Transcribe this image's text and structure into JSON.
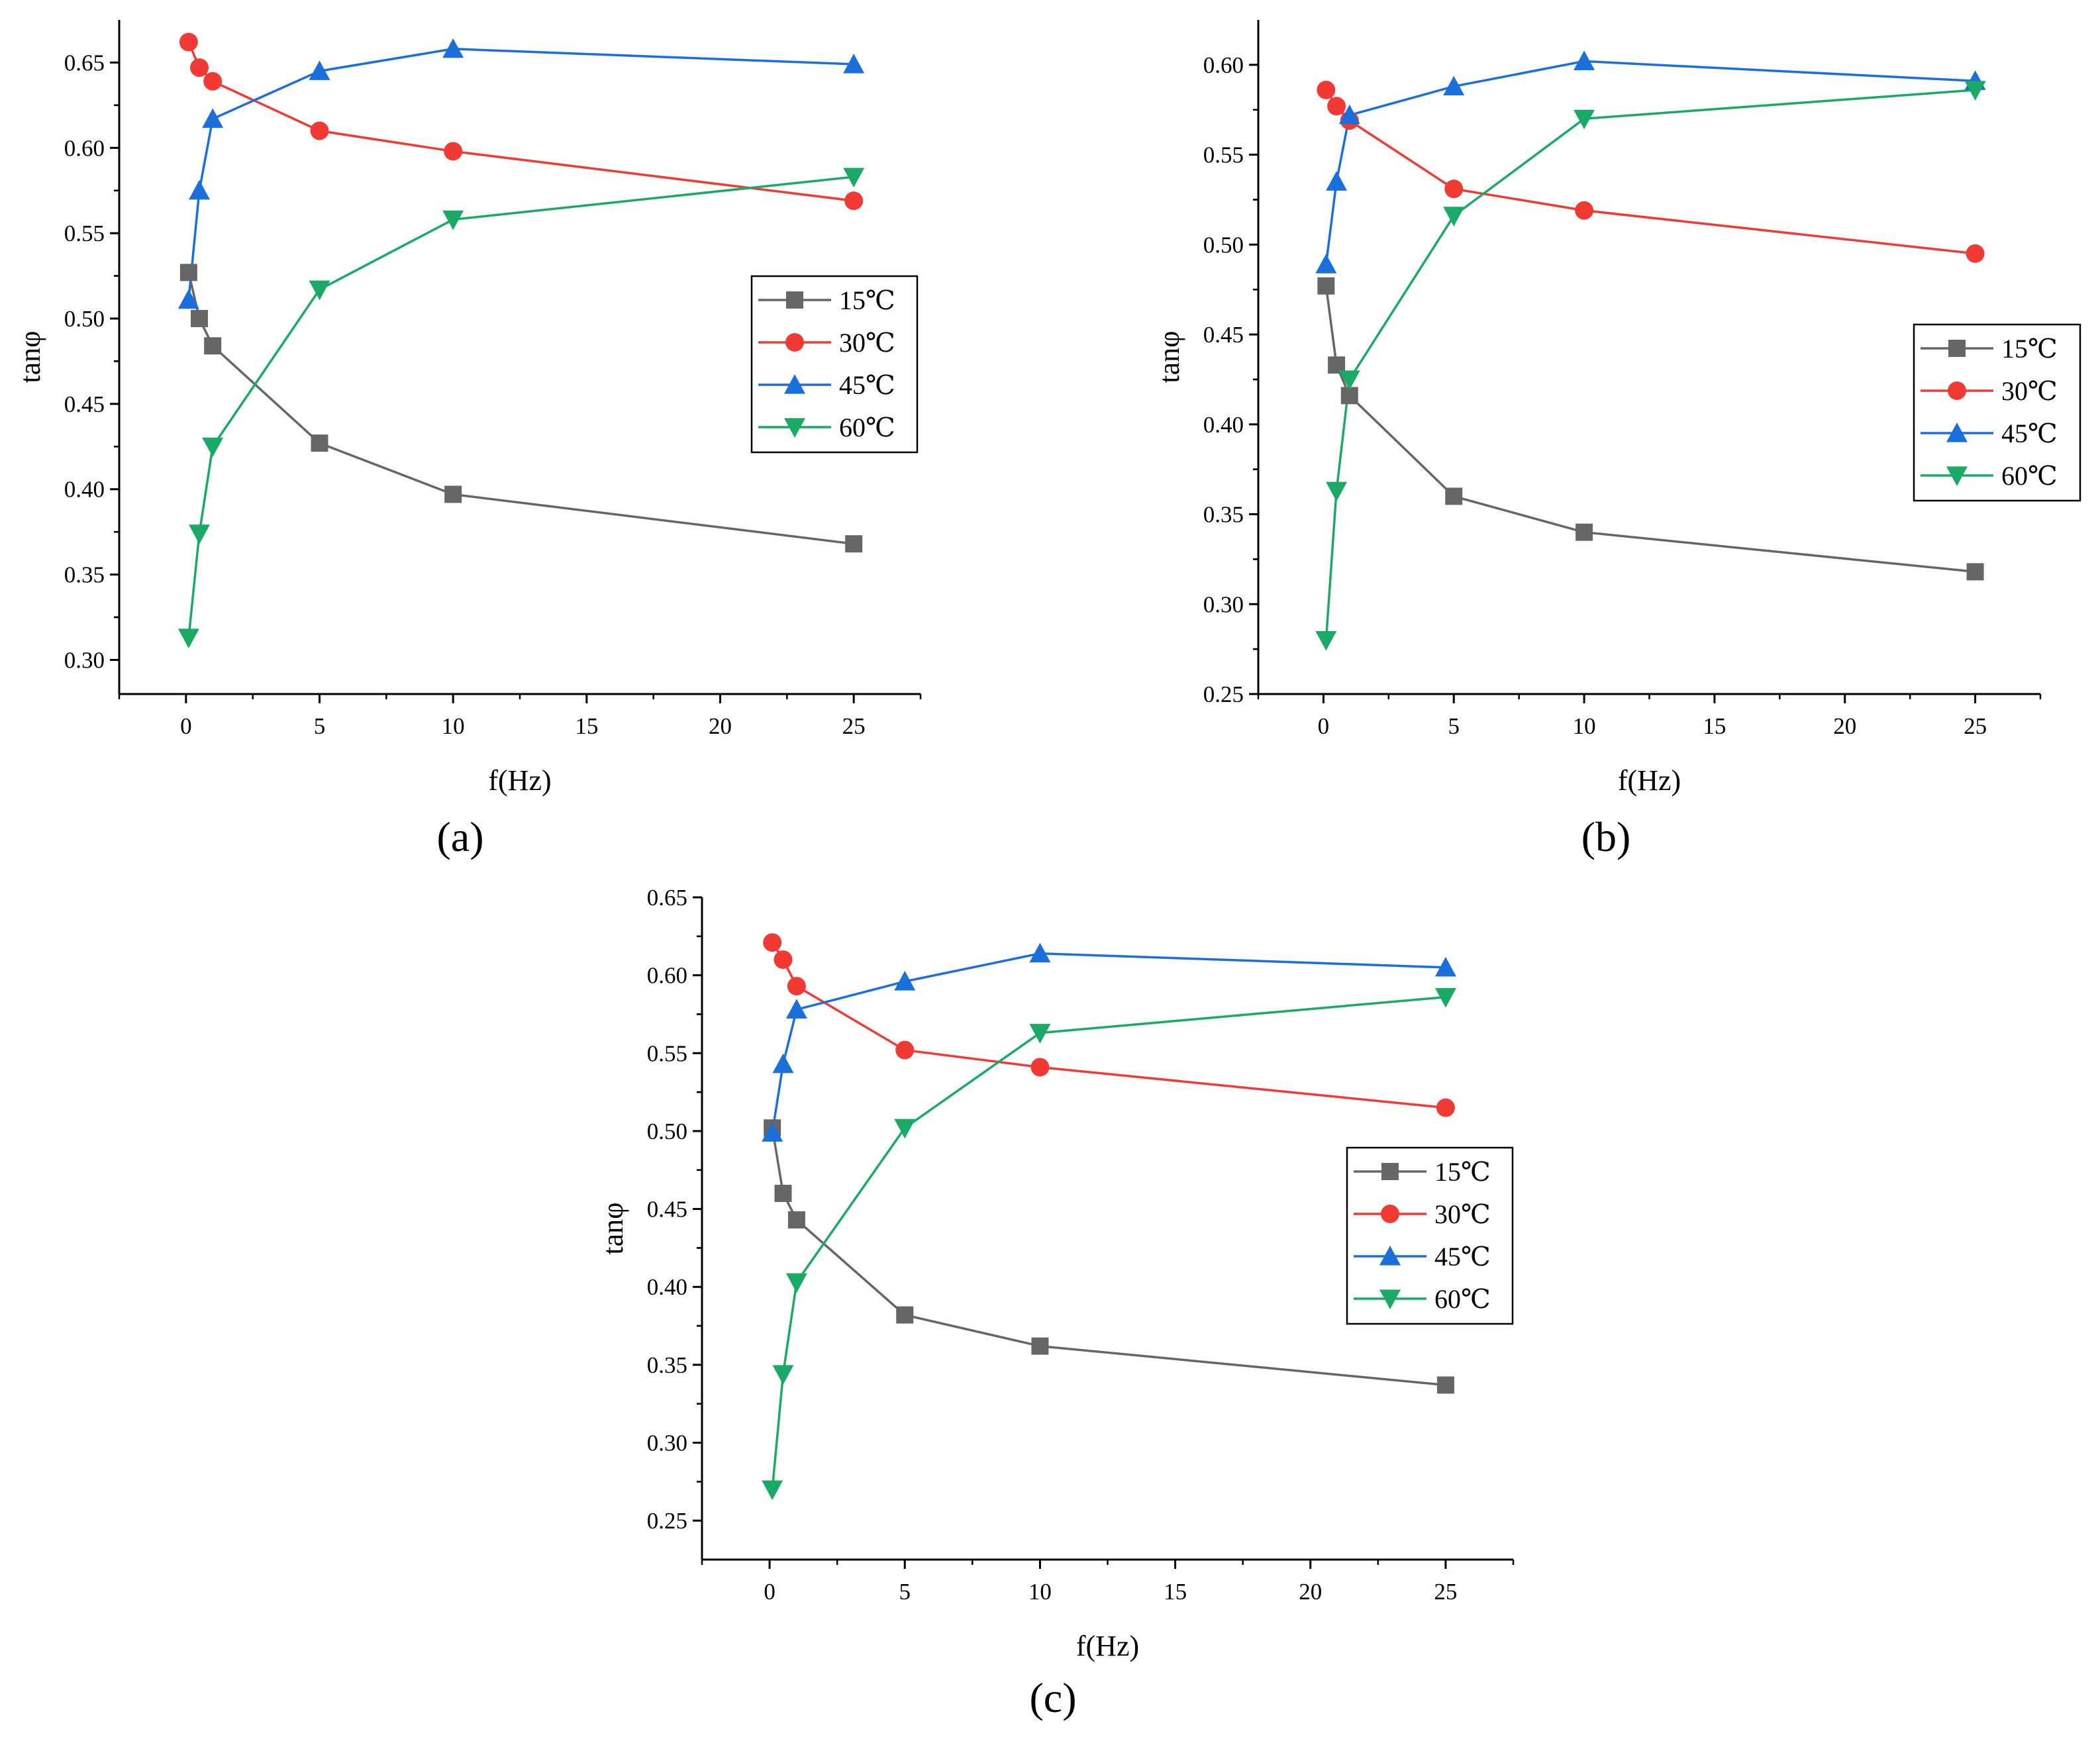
{
  "chart_data": [
    {
      "type": "line",
      "panel_label": "(a)",
      "xlabel": "f(Hz)",
      "ylabel": "tanφ",
      "xlim": [
        -2.5,
        27.5
      ],
      "ylim": [
        0.28,
        0.675
      ],
      "xticks": [
        0,
        5,
        10,
        15,
        20,
        25
      ],
      "yticks": [
        "0.30",
        "0.35",
        "0.40",
        "0.45",
        "0.50",
        "0.55",
        "0.60",
        "0.65"
      ],
      "legend_position": "center-right",
      "x": [
        0.1,
        0.5,
        1,
        5,
        10,
        25
      ],
      "series": [
        {
          "name": "15℃",
          "color": "#666666",
          "marker": "square",
          "values": [
            0.527,
            0.5,
            0.484,
            0.427,
            0.397,
            0.368
          ]
        },
        {
          "name": "30℃",
          "color": "#f23a35",
          "marker": "circle",
          "values": [
            0.662,
            0.647,
            0.639,
            0.61,
            0.598,
            0.569
          ]
        },
        {
          "name": "45℃",
          "color": "#1a6fdb",
          "marker": "triangle-up",
          "values": [
            0.511,
            0.575,
            0.617,
            0.645,
            0.658,
            0.649
          ]
        },
        {
          "name": "60℃",
          "color": "#1aaa66",
          "marker": "triangle-down",
          "values": [
            0.313,
            0.374,
            0.425,
            0.517,
            0.558,
            0.583
          ]
        }
      ]
    },
    {
      "type": "line",
      "panel_label": "(b)",
      "xlabel": "f(Hz)",
      "ylabel": "tanφ",
      "xlim": [
        -2.5,
        27.5
      ],
      "ylim": [
        0.25,
        0.625
      ],
      "xticks": [
        0,
        5,
        10,
        15,
        20,
        25
      ],
      "yticks": [
        "0.25",
        "0.30",
        "0.35",
        "0.40",
        "0.45",
        "0.50",
        "0.55",
        "0.60"
      ],
      "legend_position": "center-right",
      "x": [
        0.1,
        0.5,
        1,
        5,
        10,
        25
      ],
      "series": [
        {
          "name": "15℃",
          "color": "#666666",
          "marker": "square",
          "values": [
            0.477,
            0.433,
            0.416,
            0.36,
            0.34,
            0.318
          ]
        },
        {
          "name": "30℃",
          "color": "#f23a35",
          "marker": "circle",
          "values": [
            0.586,
            0.577,
            0.569,
            0.531,
            0.519,
            0.495
          ]
        },
        {
          "name": "45℃",
          "color": "#1a6fdb",
          "marker": "triangle-up",
          "values": [
            0.489,
            0.535,
            0.572,
            0.588,
            0.602,
            0.591
          ]
        },
        {
          "name": "60℃",
          "color": "#1aaa66",
          "marker": "triangle-down",
          "values": [
            0.28,
            0.363,
            0.425,
            0.516,
            0.57,
            0.586
          ]
        }
      ]
    },
    {
      "type": "line",
      "panel_label": "(c)",
      "xlabel": "f(Hz)",
      "ylabel": "tanφ",
      "xlim": [
        -2.5,
        27.5
      ],
      "ylim": [
        0.225,
        0.65
      ],
      "xticks": [
        0,
        5,
        10,
        15,
        20,
        25
      ],
      "yticks": [
        "0.25",
        "0.30",
        "0.35",
        "0.40",
        "0.45",
        "0.50",
        "0.55",
        "0.60",
        "0.65"
      ],
      "legend_position": "center-right",
      "x": [
        0.1,
        0.5,
        1,
        5,
        10,
        25
      ],
      "series": [
        {
          "name": "15℃",
          "color": "#666666",
          "marker": "square",
          "values": [
            0.502,
            0.46,
            0.443,
            0.382,
            0.362,
            0.337
          ]
        },
        {
          "name": "30℃",
          "color": "#f23a35",
          "marker": "circle",
          "values": [
            0.621,
            0.61,
            0.593,
            0.552,
            0.541,
            0.515
          ]
        },
        {
          "name": "45℃",
          "color": "#1a6fdb",
          "marker": "triangle-up",
          "values": [
            0.499,
            0.543,
            0.578,
            0.596,
            0.614,
            0.605
          ]
        },
        {
          "name": "60℃",
          "color": "#1aaa66",
          "marker": "triangle-down",
          "values": [
            0.27,
            0.344,
            0.403,
            0.502,
            0.563,
            0.586
          ]
        }
      ]
    }
  ]
}
